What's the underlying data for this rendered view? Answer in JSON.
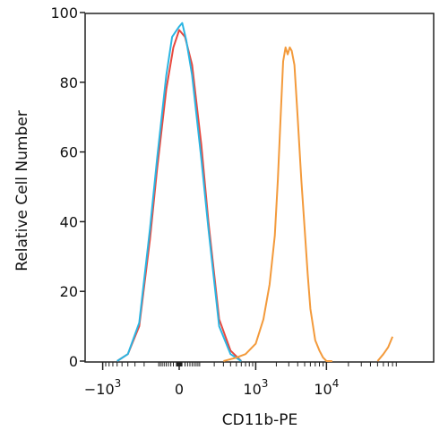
{
  "chart_data": {
    "type": "line",
    "title": "",
    "xlabel": "CD11b-PE",
    "ylabel": "Relative Cell Number",
    "x_scale": "biexponential",
    "ylim": [
      0,
      100
    ],
    "y_ticks": [
      0,
      20,
      40,
      60,
      80,
      100
    ],
    "y_tick_labels": [
      "0",
      "20",
      "40",
      "60",
      "80",
      "100"
    ],
    "x_ticks": [
      {
        "value": -1000,
        "base": "−10",
        "exp": "3"
      },
      {
        "value": 0,
        "base": "0",
        "exp": ""
      },
      {
        "value": 1000,
        "base": "10",
        "exp": "3"
      },
      {
        "value": 10000,
        "base": "10",
        "exp": "4"
      }
    ],
    "grid": false,
    "legend": "none",
    "series": [
      {
        "color": "#e8493f",
        "x": [
          -600,
          -400,
          -250,
          -150,
          -100,
          -50,
          -20,
          0,
          20,
          50,
          100,
          150,
          250,
          400,
          600
        ],
        "y": [
          0,
          2,
          10,
          35,
          55,
          78,
          90,
          95,
          93,
          85,
          62,
          40,
          12,
          3,
          0
        ]
      },
      {
        "color": "#2bb5e2",
        "x": [
          -600,
          -400,
          -250,
          -150,
          -100,
          -50,
          -25,
          0,
          10,
          25,
          50,
          100,
          150,
          250,
          400,
          600
        ],
        "y": [
          0,
          2,
          11,
          38,
          58,
          82,
          93,
          96,
          97,
          92,
          82,
          58,
          38,
          10,
          2,
          0
        ]
      },
      {
        "color": "#f39a3b",
        "x": [
          300,
          500,
          700,
          1000,
          1300,
          1600,
          1900,
          2100,
          2300,
          2500,
          2700,
          2900,
          3100,
          3300,
          3600,
          4000,
          4500,
          5000,
          5500,
          6000,
          7000,
          8000,
          9000,
          10000,
          11000,
          12000
        ],
        "y": [
          0,
          1,
          2,
          5,
          12,
          22,
          36,
          52,
          70,
          86,
          90,
          88,
          90,
          89,
          85,
          70,
          52,
          38,
          25,
          15,
          6,
          3,
          1,
          0,
          0,
          0
        ]
      },
      {
        "color": "#f39a3b",
        "x": [
          50000,
          60000,
          70000,
          80000
        ],
        "y": [
          0,
          2,
          4,
          7
        ]
      }
    ]
  }
}
